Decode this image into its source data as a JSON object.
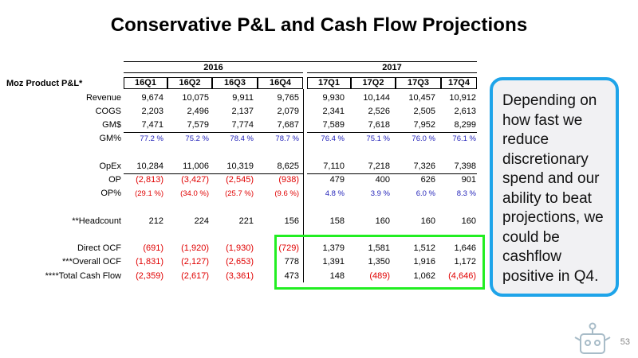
{
  "title": "Conservative P&L and Cash Flow Projections",
  "table": {
    "corner_label": "Moz Product P&L*",
    "years": [
      "2016",
      "2017"
    ],
    "quarters": [
      "16Q1",
      "16Q2",
      "16Q3",
      "16Q4",
      "17Q1",
      "17Q2",
      "17Q3",
      "17Q4"
    ],
    "rows": [
      {
        "label": "Revenue",
        "values": [
          "9,674",
          "10,075",
          "9,911",
          "9,765",
          "9,930",
          "10,144",
          "10,457",
          "10,912"
        ],
        "style": [
          "n",
          "n",
          "n",
          "n",
          "n",
          "n",
          "n",
          "n"
        ]
      },
      {
        "label": "COGS",
        "values": [
          "2,203",
          "2,496",
          "2,137",
          "2,079",
          "2,341",
          "2,526",
          "2,505",
          "2,613"
        ],
        "style": [
          "n",
          "n",
          "n",
          "n",
          "n",
          "n",
          "n",
          "n"
        ]
      },
      {
        "label": "GM$",
        "values": [
          "7,471",
          "7,579",
          "7,774",
          "7,687",
          "7,589",
          "7,618",
          "7,952",
          "8,299"
        ],
        "style": [
          "n",
          "n",
          "n",
          "n",
          "n",
          "n",
          "n",
          "n"
        ]
      },
      {
        "label": "GM%",
        "values": [
          "77.2 %",
          "75.2 %",
          "78.4 %",
          "78.7 %",
          "76.4 %",
          "75.1 %",
          "76.0 %",
          "76.1 %"
        ],
        "style": [
          "b",
          "b",
          "b",
          "b",
          "b",
          "b",
          "b",
          "b"
        ]
      },
      {
        "label": "OpEx",
        "values": [
          "10,284",
          "11,006",
          "10,319",
          "8,625",
          "7,110",
          "7,218",
          "7,326",
          "7,398"
        ],
        "style": [
          "n",
          "n",
          "n",
          "n",
          "n",
          "n",
          "n",
          "n"
        ]
      },
      {
        "label": "OP",
        "values": [
          "(2,813)",
          "(3,427)",
          "(2,545)",
          "(938)",
          "479",
          "400",
          "626",
          "901"
        ],
        "style": [
          "r",
          "r",
          "r",
          "r",
          "n",
          "n",
          "n",
          "n"
        ]
      },
      {
        "label": "OP%",
        "values": [
          "(29.1 %)",
          "(34.0 %)",
          "(25.7 %)",
          "(9.6 %)",
          "4.8 %",
          "3.9 %",
          "6.0 %",
          "8.3 %"
        ],
        "style": [
          "rs",
          "rs",
          "rs",
          "rs",
          "b",
          "b",
          "b",
          "b"
        ]
      },
      {
        "label": "**Headcount",
        "values": [
          "212",
          "224",
          "221",
          "156",
          "158",
          "160",
          "160",
          "160"
        ],
        "style": [
          "n",
          "n",
          "n",
          "n",
          "n",
          "n",
          "n",
          "n"
        ]
      },
      {
        "label": "Direct OCF",
        "values": [
          "(691)",
          "(1,920)",
          "(1,930)",
          "(729)",
          "1,379",
          "1,581",
          "1,512",
          "1,646"
        ],
        "style": [
          "r",
          "r",
          "r",
          "r",
          "n",
          "n",
          "n",
          "n"
        ]
      },
      {
        "label": "***Overall OCF",
        "values": [
          "(1,831)",
          "(2,127)",
          "(2,653)",
          "778",
          "1,391",
          "1,350",
          "1,916",
          "1,172"
        ],
        "style": [
          "r",
          "r",
          "r",
          "n",
          "n",
          "n",
          "n",
          "n"
        ]
      },
      {
        "label": "****Total Cash Flow",
        "values": [
          "(2,359)",
          "(2,617)",
          "(3,361)",
          "473",
          "148",
          "(489)",
          "1,062",
          "(4,646)"
        ],
        "style": [
          "r",
          "r",
          "r",
          "n",
          "n",
          "r",
          "n",
          "r"
        ]
      }
    ]
  },
  "callout": "Depending on how fast we reduce discretionary spend and our ability to beat projections, we could be cashflow positive in Q4.",
  "page_number": "53",
  "colors": {
    "accent_blue": "#1ea4e9",
    "highlight_green": "#22ee22",
    "negative_red": "#e00000",
    "percent_blue": "#1f1fb8"
  }
}
